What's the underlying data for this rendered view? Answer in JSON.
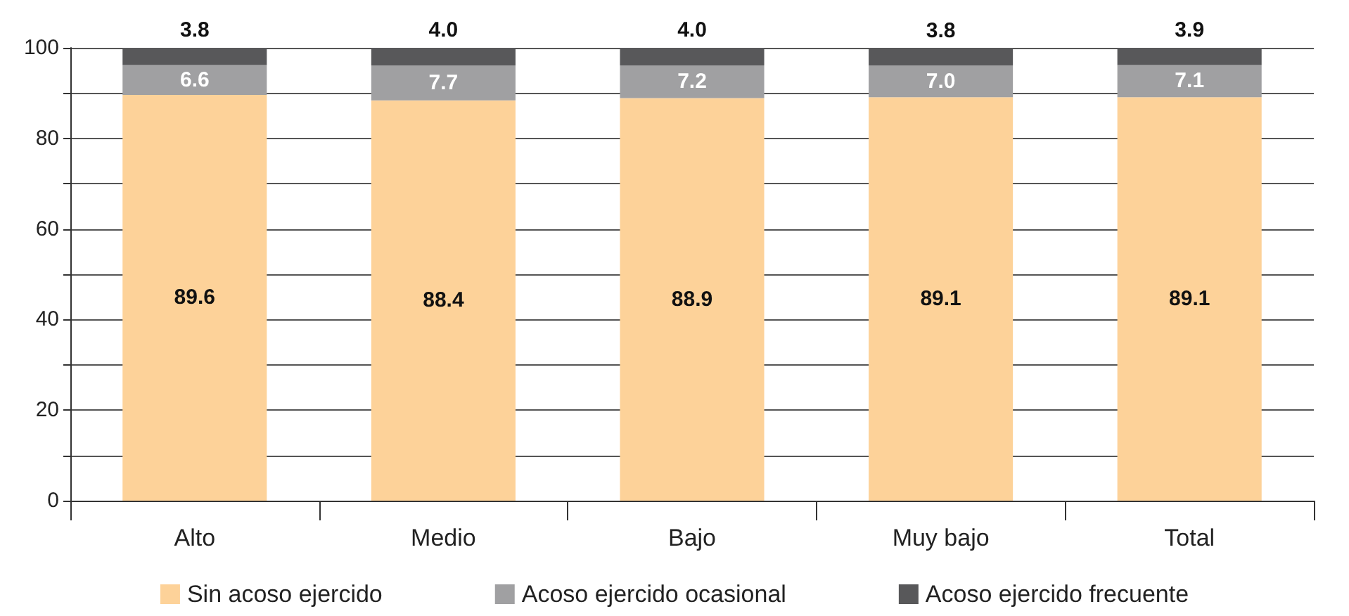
{
  "chart_data": {
    "type": "bar",
    "stacked": true,
    "categories": [
      "Alto",
      "Medio",
      "Bajo",
      "Muy bajo",
      "Total"
    ],
    "series": [
      {
        "name": "Sin acoso ejercido",
        "color": "#fdd299",
        "values": [
          89.6,
          88.4,
          88.9,
          89.1,
          89.1
        ],
        "value_labels": [
          "89.6",
          "88.4",
          "88.9",
          "89.1",
          "89.1"
        ]
      },
      {
        "name": "Acoso ejercido ocasional",
        "color": "#a0a0a2",
        "values": [
          6.6,
          7.7,
          7.2,
          7.0,
          7.1
        ],
        "value_labels": [
          "6.6",
          "7.7",
          "7.2",
          "7.0",
          "7.1"
        ]
      },
      {
        "name": "Acoso ejercido frecuente",
        "color": "#58585a",
        "values": [
          3.8,
          4.0,
          4.0,
          3.8,
          3.9
        ],
        "value_labels": [
          "3.8",
          "4.0",
          "4.0",
          "3.8",
          "3.9"
        ]
      }
    ],
    "ylim": [
      0,
      100
    ],
    "yticks": [
      0,
      {
        "value": 10,
        "label": null
      },
      20,
      {
        "value": 30,
        "label": null
      },
      40,
      {
        "value": 50,
        "label": null
      },
      60,
      {
        "value": 70,
        "label": null
      },
      80,
      {
        "value": 90,
        "label": null
      },
      100
    ],
    "grid": "y",
    "legend": "bottom"
  }
}
